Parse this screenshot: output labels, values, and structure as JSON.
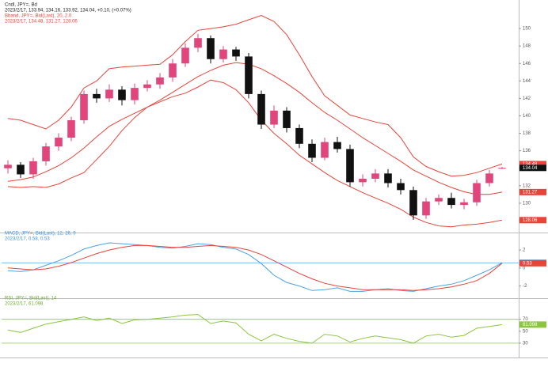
{
  "chart_data": [
    {
      "type": "candlestick",
      "legend": [
        {
          "text": "Cndl, JPY=, Bd",
          "color": "#222222"
        },
        {
          "text": "2023/2/17, 133.94, 134.16, 133.92, 134.04, +0.10, (+0.07%)",
          "color": "#222222"
        },
        {
          "text": "Bband, JPY=, Bid(Last), 20, 2.0",
          "color": "#e8443a"
        },
        {
          "text": "2023/2/17, 134.48, 131.27, 128.06",
          "color": "#e8443a"
        }
      ],
      "up_color": "#e0457b",
      "down_color": "#111111",
      "open": [
        134.0,
        134.4,
        133.3,
        134.8,
        136.5,
        137.5,
        139.5,
        142.5,
        142.0,
        143.0,
        141.8,
        143.2,
        143.6,
        144.4,
        146.0,
        147.8,
        148.9,
        146.5,
        147.6,
        146.8,
        142.5,
        139.0,
        140.6,
        138.6,
        136.8,
        135.2,
        137.0,
        136.2,
        132.4,
        132.8,
        133.4,
        132.3,
        131.5,
        128.6,
        130.2,
        130.6,
        129.8,
        130.1,
        132.3,
        133.94
      ],
      "high": [
        134.9,
        134.7,
        135.2,
        136.9,
        138.0,
        139.9,
        142.9,
        143.1,
        143.6,
        143.4,
        143.7,
        144.1,
        144.9,
        146.5,
        148.3,
        149.4,
        149.2,
        148.0,
        147.9,
        147.2,
        142.9,
        141.2,
        141.0,
        139.0,
        137.3,
        137.5,
        137.6,
        136.7,
        133.3,
        133.9,
        133.9,
        132.8,
        131.9,
        130.6,
        131.0,
        131.2,
        130.5,
        132.7,
        133.8,
        134.16
      ],
      "low": [
        133.4,
        132.9,
        132.8,
        134.3,
        136.0,
        137.1,
        139.1,
        141.5,
        141.6,
        141.2,
        141.3,
        142.8,
        143.1,
        143.9,
        145.6,
        147.3,
        146.0,
        146.1,
        146.3,
        142.0,
        138.5,
        138.6,
        138.1,
        136.3,
        134.7,
        134.9,
        135.8,
        131.9,
        131.9,
        132.4,
        131.8,
        131.0,
        128.1,
        128.2,
        129.8,
        129.4,
        129.3,
        129.7,
        131.9,
        133.92
      ],
      "close": [
        134.4,
        133.3,
        134.8,
        136.5,
        137.5,
        139.5,
        142.5,
        142.0,
        143.0,
        141.8,
        143.2,
        143.6,
        144.4,
        146.0,
        147.8,
        148.9,
        146.5,
        147.6,
        146.8,
        142.5,
        139.0,
        140.6,
        138.6,
        136.8,
        135.2,
        137.0,
        136.2,
        132.4,
        132.8,
        133.4,
        132.3,
        131.5,
        128.6,
        130.2,
        130.6,
        129.8,
        130.1,
        132.3,
        133.4,
        134.04
      ],
      "series": [
        {
          "color": "#e8443a",
          "values": [
            139.7,
            139.5,
            139.0,
            138.5,
            139.5,
            141.0,
            143.2,
            144.0,
            145.4,
            145.6,
            145.7,
            145.8,
            145.9,
            147.0,
            148.5,
            149.8,
            150.0,
            150.2,
            150.5,
            151.0,
            151.5,
            150.8,
            149.3,
            147.0,
            144.5,
            142.3,
            141.2,
            140.1,
            139.7,
            139.3,
            139.0,
            137.5,
            135.3,
            134.2,
            133.6,
            133.1,
            133.2,
            133.5,
            134.0,
            134.48
          ]
        },
        {
          "color": "#e8443a",
          "values": [
            132.5,
            132.7,
            133.0,
            133.6,
            134.3,
            135.2,
            136.3,
            137.6,
            138.8,
            139.6,
            140.3,
            141.0,
            141.8,
            142.7,
            143.6,
            144.5,
            145.2,
            145.8,
            146.1,
            145.9,
            145.4,
            144.6,
            143.7,
            142.7,
            141.5,
            140.4,
            139.5,
            138.5,
            137.5,
            136.6,
            135.7,
            134.8,
            133.8,
            133.1,
            132.4,
            131.8,
            131.3,
            131.0,
            131.0,
            131.27
          ]
        },
        {
          "color": "#e8443a",
          "values": [
            131.9,
            131.8,
            131.9,
            131.8,
            132.2,
            132.9,
            133.5,
            135.0,
            136.5,
            138.3,
            139.8,
            141.0,
            141.6,
            142.2,
            142.6,
            143.3,
            144.1,
            143.8,
            143.0,
            141.5,
            139.5,
            138.0,
            136.8,
            135.5,
            134.5,
            133.5,
            132.6,
            131.9,
            131.2,
            130.6,
            130.0,
            129.3,
            128.4,
            127.8,
            127.4,
            127.3,
            127.5,
            127.6,
            127.8,
            128.06
          ]
        }
      ],
      "ylim": [
        127,
        152
      ],
      "yticks": [
        128,
        130,
        132,
        134,
        136,
        138,
        140,
        142,
        144,
        146,
        148,
        150
      ]
    },
    {
      "type": "line",
      "legend": [
        {
          "text": "MACD, JPY=, Bid(Last), 12, 26, 9",
          "color": "#3a8fd9"
        },
        {
          "text": "2023/2/17, 0.58, 0.53",
          "color": "#3a8fd9"
        }
      ],
      "series": [
        {
          "color": "#4aa3e8",
          "values": [
            -0.3,
            -0.4,
            -0.2,
            0.3,
            0.8,
            1.4,
            2.1,
            2.5,
            2.8,
            2.7,
            2.6,
            2.5,
            2.3,
            2.2,
            2.4,
            2.7,
            2.6,
            2.3,
            2.1,
            1.5,
            0.5,
            -0.8,
            -1.6,
            -2.0,
            -2.5,
            -2.4,
            -2.2,
            -2.6,
            -2.6,
            -2.4,
            -2.3,
            -2.5,
            -2.6,
            -2.3,
            -2.0,
            -1.8,
            -1.4,
            -0.8,
            -0.2,
            0.58
          ]
        },
        {
          "color": "#e8443a",
          "values": [
            0.0,
            -0.1,
            -0.2,
            -0.1,
            0.2,
            0.6,
            1.1,
            1.6,
            2.0,
            2.3,
            2.5,
            2.5,
            2.4,
            2.3,
            2.3,
            2.4,
            2.5,
            2.4,
            2.3,
            2.0,
            1.5,
            0.8,
            0.1,
            -0.6,
            -1.2,
            -1.7,
            -2.0,
            -2.2,
            -2.4,
            -2.4,
            -2.4,
            -2.4,
            -2.5,
            -2.4,
            -2.3,
            -2.1,
            -1.8,
            -1.4,
            -0.6,
            0.53
          ]
        }
      ],
      "ylim": [
        -3,
        3.5
      ],
      "yticks": [
        -2,
        0,
        2
      ]
    },
    {
      "type": "line",
      "legend": [
        {
          "text": "RSI, JPY=, Bid(Last), 14",
          "color": "#6aa832"
        },
        {
          "text": "2023/2/17, 61.098",
          "color": "#6aa832"
        }
      ],
      "series": [
        {
          "color": "#8cc63f",
          "values": [
            52,
            48,
            55,
            62,
            66,
            70,
            74,
            68,
            72,
            63,
            69,
            70,
            72,
            74,
            77,
            78,
            63,
            67,
            64,
            45,
            34,
            45,
            38,
            33,
            30,
            45,
            42,
            32,
            38,
            42,
            39,
            36,
            30,
            42,
            45,
            40,
            43,
            55,
            58,
            61.098
          ]
        }
      ],
      "hlines": [
        30,
        70
      ],
      "hline_color": "#8cc63f",
      "ylim": [
        10,
        100
      ],
      "yticks": [
        30,
        50,
        70
      ]
    }
  ]
}
